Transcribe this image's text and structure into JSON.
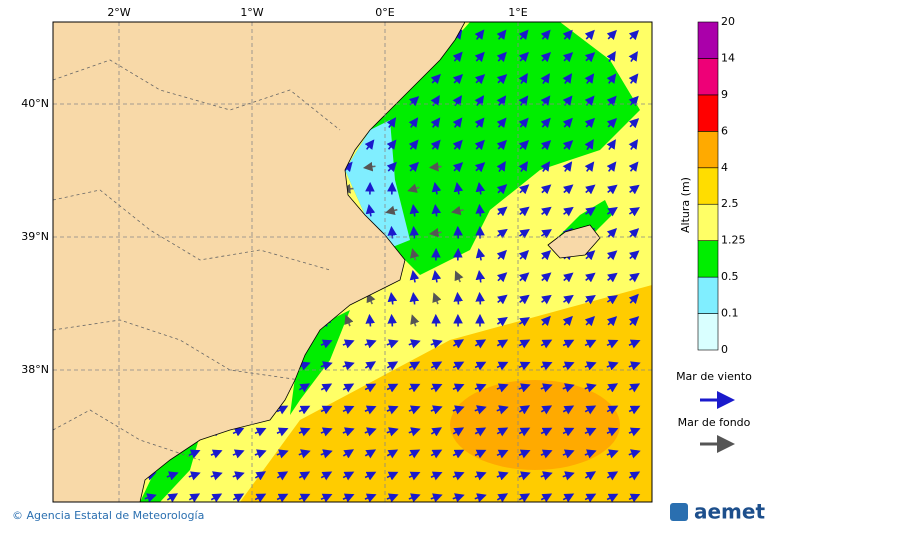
{
  "map": {
    "lon_labels": [
      "2°W",
      "1°W",
      "0°E",
      "1°E"
    ],
    "lat_labels": [
      "40°N",
      "39°N",
      "38°N"
    ]
  },
  "colorbar": {
    "title": "Altura (m)",
    "levels": [
      0,
      0.1,
      0.5,
      1.25,
      2.5,
      4,
      6,
      9,
      14,
      20
    ],
    "colors": [
      "#d9ffff",
      "#80eeff",
      "#00ee00",
      "#ffff66",
      "#ffdd00",
      "#ffaa00",
      "#ff0000",
      "#ee0077",
      "#aa00aa"
    ]
  },
  "legend": {
    "wind_sea": "Mar de viento",
    "swell": "Mar de fondo"
  },
  "footer": {
    "credit": "© Agencia Estatal de Meteorología",
    "logo": "aemet"
  }
}
